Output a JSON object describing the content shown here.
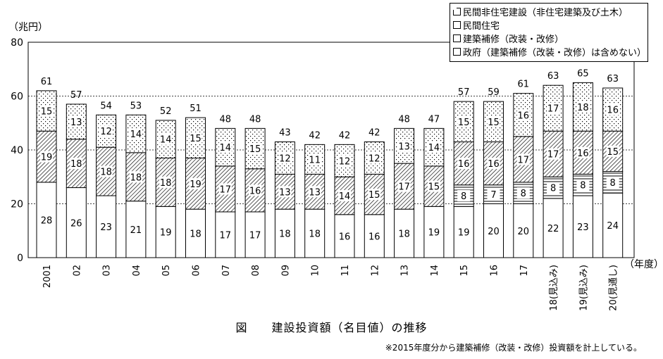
{
  "chart_data": {
    "type": "bar",
    "stacked": true,
    "title": "図　　建設投資額（名目値）の推移",
    "ylabel": "（兆円）",
    "xlabel": "（年度）",
    "ylim": [
      0,
      80
    ],
    "yticks": [
      0,
      20,
      40,
      60,
      80
    ],
    "grid": true,
    "legend_position": "top-right",
    "categories": [
      "2001",
      "02",
      "03",
      "04",
      "05",
      "06",
      "07",
      "08",
      "09",
      "10",
      "11",
      "12",
      "13",
      "14",
      "15",
      "16",
      "17",
      "18(見込み)",
      "19(見込み)",
      "20(見通し)"
    ],
    "series": [
      {
        "name": "政府（建築補修（改装・改修）は含めない）",
        "pattern": "white",
        "values": [
          28,
          26,
          23,
          21,
          19,
          18,
          17,
          17,
          18,
          18,
          16,
          16,
          18,
          19,
          19,
          20,
          20,
          22,
          23,
          24
        ]
      },
      {
        "name": "建築補修（改装・改修）",
        "pattern": "hlines",
        "values": [
          null,
          null,
          null,
          null,
          null,
          null,
          null,
          null,
          null,
          null,
          null,
          null,
          null,
          null,
          8,
          7,
          8,
          8,
          8,
          8
        ]
      },
      {
        "name": "民間住宅",
        "pattern": "hatch",
        "values": [
          19,
          18,
          18,
          18,
          18,
          19,
          17,
          16,
          13,
          13,
          14,
          15,
          17,
          15,
          16,
          16,
          17,
          17,
          16,
          15
        ]
      },
      {
        "name": "民間非住宅建設（非住宅建築及び土木）",
        "pattern": "dots",
        "values": [
          15,
          13,
          12,
          14,
          14,
          15,
          14,
          15,
          12,
          11,
          12,
          12,
          13,
          14,
          15,
          15,
          16,
          17,
          18,
          16
        ]
      }
    ],
    "totals": [
      61,
      57,
      54,
      53,
      52,
      51,
      48,
      48,
      43,
      42,
      42,
      42,
      48,
      47,
      57,
      59,
      61,
      63,
      65,
      63
    ],
    "legend_order": [
      3,
      2,
      1,
      0
    ],
    "note": "※2015年度分から建築補修（改装・改修）投資額を計上している。"
  }
}
